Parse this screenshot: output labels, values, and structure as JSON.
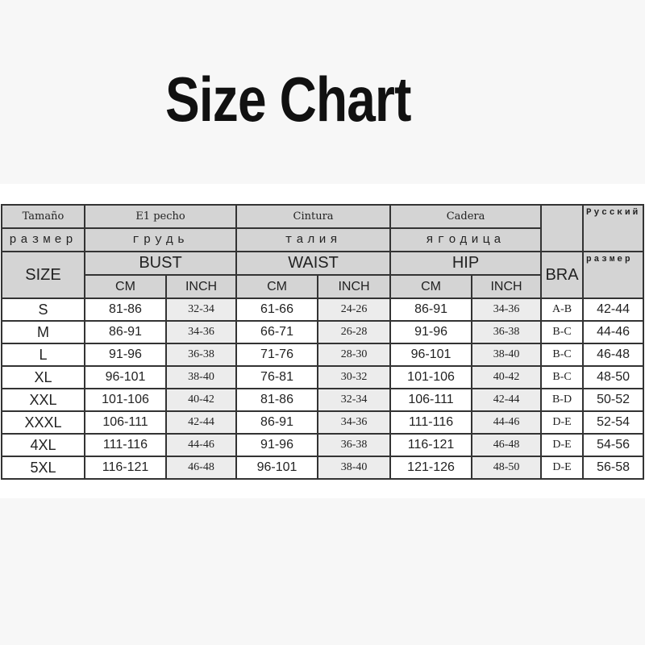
{
  "title": "Size Chart",
  "header": {
    "row1": {
      "size": "Tamaño",
      "bust": "E1 pecho",
      "waist": "Cintura",
      "hip": "Cadera",
      "russian": "Русский"
    },
    "row2": {
      "size": "размер",
      "bust": "грудь",
      "waist": "талия",
      "hip": "ягодица"
    },
    "row3": {
      "size": "SIZE",
      "bust": "BUST",
      "waist": "WAIST",
      "hip": "HIP",
      "bra": "BRA",
      "russian_size": "размер"
    },
    "row4": {
      "cm": "CM",
      "inch": "INCH"
    }
  },
  "rows": [
    {
      "size": "S",
      "bust_cm": "81-86",
      "bust_in": "32-34",
      "waist_cm": "61-66",
      "waist_in": "24-26",
      "hip_cm": "86-91",
      "hip_in": "34-36",
      "bra": "A-B",
      "ru": "42-44"
    },
    {
      "size": "M",
      "bust_cm": "86-91",
      "bust_in": "34-36",
      "waist_cm": "66-71",
      "waist_in": "26-28",
      "hip_cm": "91-96",
      "hip_in": "36-38",
      "bra": "B-C",
      "ru": "44-46"
    },
    {
      "size": "L",
      "bust_cm": "91-96",
      "bust_in": "36-38",
      "waist_cm": "71-76",
      "waist_in": "28-30",
      "hip_cm": "96-101",
      "hip_in": "38-40",
      "bra": "B-C",
      "ru": "46-48"
    },
    {
      "size": "XL",
      "bust_cm": "96-101",
      "bust_in": "38-40",
      "waist_cm": "76-81",
      "waist_in": "30-32",
      "hip_cm": "101-106",
      "hip_in": "40-42",
      "bra": "B-C",
      "ru": "48-50"
    },
    {
      "size": "XXL",
      "bust_cm": "101-106",
      "bust_in": "40-42",
      "waist_cm": "81-86",
      "waist_in": "32-34",
      "hip_cm": "106-111",
      "hip_in": "42-44",
      "bra": "B-D",
      "ru": "50-52"
    },
    {
      "size": "XXXL",
      "bust_cm": "106-111",
      "bust_in": "42-44",
      "waist_cm": "86-91",
      "waist_in": "34-36",
      "hip_cm": "111-116",
      "hip_in": "44-46",
      "bra": "D-E",
      "ru": "52-54"
    },
    {
      "size": "4XL",
      "bust_cm": "111-116",
      "bust_in": "44-46",
      "waist_cm": "91-96",
      "waist_in": "36-38",
      "hip_cm": "116-121",
      "hip_in": "46-48",
      "bra": "D-E",
      "ru": "54-56"
    },
    {
      "size": "5XL",
      "bust_cm": "116-121",
      "bust_in": "46-48",
      "waist_cm": "96-101",
      "waist_in": "38-40",
      "hip_cm": "121-126",
      "hip_in": "48-50",
      "bra": "D-E",
      "ru": "56-58"
    }
  ]
}
